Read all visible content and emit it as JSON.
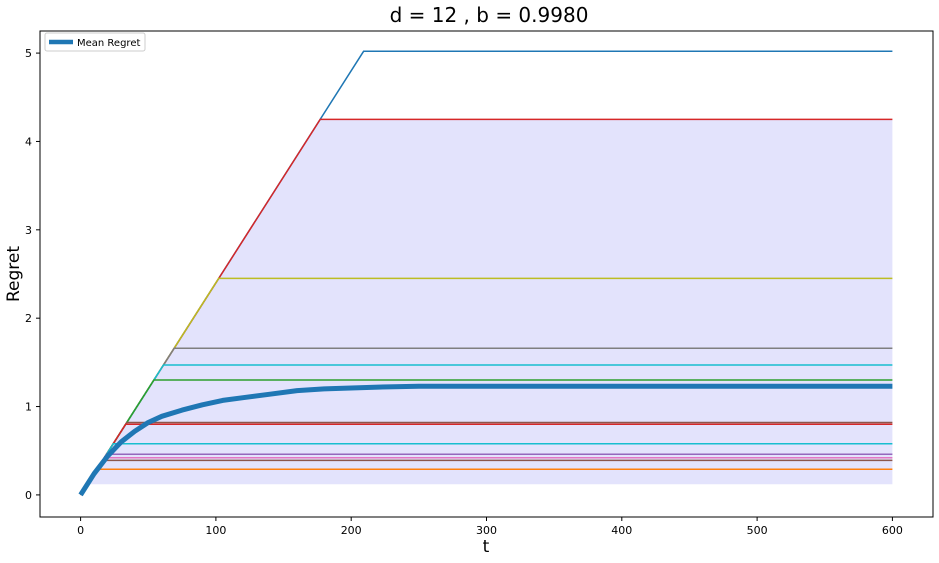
{
  "chart_data": {
    "type": "line",
    "title": "d = 12 , b = 0.9980",
    "xlabel": "t",
    "ylabel": "Regret",
    "xlim": [
      -30,
      630
    ],
    "ylim": [
      -0.25,
      5.25
    ],
    "xticks": [
      0,
      100,
      200,
      300,
      400,
      500,
      600
    ],
    "yticks": [
      0,
      1,
      2,
      3,
      4,
      5
    ],
    "grid": false,
    "legend": {
      "position": "upper-left",
      "entries": [
        "Mean Regret"
      ]
    },
    "slope": 0.024,
    "t_max": 600,
    "band": {
      "lower": 0.12,
      "upper": 4.25,
      "color": "#e3e3fc"
    },
    "series": [
      {
        "plateau": 5.02,
        "color": "#1f77b4"
      },
      {
        "plateau": 4.25,
        "color": "#d62728"
      },
      {
        "plateau": 2.45,
        "color": "#bcbd22"
      },
      {
        "plateau": 1.66,
        "color": "#7f7f7f"
      },
      {
        "plateau": 1.47,
        "color": "#17becf"
      },
      {
        "plateau": 1.3,
        "color": "#2ca02c"
      },
      {
        "plateau": 0.82,
        "color": "#8c564b"
      },
      {
        "plateau": 0.8,
        "color": "#d62728"
      },
      {
        "plateau": 0.58,
        "color": "#17becf"
      },
      {
        "plateau": 0.46,
        "color": "#9467bd"
      },
      {
        "plateau": 0.42,
        "color": "#e377c2"
      },
      {
        "plateau": 0.39,
        "color": "#8c564b"
      },
      {
        "plateau": 0.29,
        "color": "#ff7f0e"
      }
    ],
    "mean": {
      "name": "Mean Regret",
      "color": "#1f77b4",
      "x": [
        0,
        10,
        20,
        30,
        40,
        50,
        60,
        75,
        90,
        105,
        120,
        140,
        160,
        180,
        200,
        220,
        250,
        300,
        400,
        500,
        600
      ],
      "y": [
        0,
        0.24,
        0.44,
        0.6,
        0.72,
        0.82,
        0.89,
        0.96,
        1.02,
        1.07,
        1.1,
        1.14,
        1.18,
        1.2,
        1.21,
        1.22,
        1.23,
        1.23,
        1.23,
        1.23,
        1.23
      ]
    }
  }
}
